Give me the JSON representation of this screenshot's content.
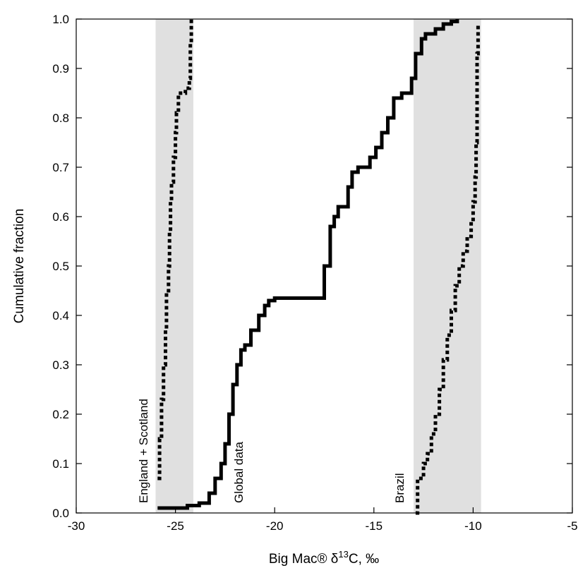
{
  "chart_data": {
    "type": "line",
    "xlabel": "Big Mac® δ13C, ‰",
    "xlabel_main": "Big Mac® δ",
    "xlabel_sup": "13",
    "xlabel_tail": "C, ‰",
    "ylabel": "Cumulative fraction",
    "xlim": [
      -30,
      -5
    ],
    "ylim": [
      0,
      1
    ],
    "xticks": [
      -30,
      -25,
      -20,
      -15,
      -10,
      -5
    ],
    "yticks": [
      0.0,
      0.1,
      0.2,
      0.3,
      0.4,
      0.5,
      0.6,
      0.7,
      0.8,
      0.9,
      1.0
    ],
    "xtick_labels": [
      "-30",
      "-25",
      "-20",
      "-15",
      "-10",
      "-5"
    ],
    "ytick_labels": [
      "0.0",
      "0.1",
      "0.2",
      "0.3",
      "0.4",
      "0.5",
      "0.6",
      "0.7",
      "0.8",
      "0.9",
      "1.0"
    ],
    "shaded_regions": [
      {
        "x0": -26.0,
        "x1": -24.1,
        "color": "#e0e0e0"
      },
      {
        "x0": -13.0,
        "x1": -9.6,
        "color": "#e0e0e0"
      }
    ],
    "annotations": [
      {
        "text": "England + Scotland",
        "x": -26.4,
        "y": 0.02
      },
      {
        "text": "Global data",
        "x": -21.6,
        "y": 0.02
      },
      {
        "text": "Brazil",
        "x": -13.5,
        "y": 0.02
      }
    ],
    "series": [
      {
        "style": "dotted",
        "color": "#000000",
        "x": [
          -25.9,
          -25.8,
          -25.7,
          -25.6,
          -25.5,
          -25.45,
          -25.35,
          -25.3,
          -25.25,
          -25.2,
          -25.1,
          -25.0,
          -24.95,
          -24.85,
          -24.7,
          -24.5,
          -24.3,
          -24.25,
          -24.2
        ],
        "y": [
          0.07,
          0.15,
          0.23,
          0.3,
          0.37,
          0.45,
          0.5,
          0.57,
          0.63,
          0.67,
          0.72,
          0.77,
          0.81,
          0.85,
          0.85,
          0.86,
          0.88,
          0.95,
          1.0
        ]
      },
      {
        "style": "solid",
        "color": "#000000",
        "x": [
          -25.9,
          -25.0,
          -24.4,
          -23.8,
          -23.3,
          -23.0,
          -22.7,
          -22.5,
          -22.3,
          -22.1,
          -21.9,
          -21.7,
          -21.5,
          -21.2,
          -20.8,
          -20.5,
          -20.3,
          -20.0,
          -19.0,
          -18.0,
          -17.5,
          -17.2,
          -17.0,
          -16.8,
          -16.3,
          -16.1,
          -15.8,
          -15.2,
          -14.9,
          -14.6,
          -14.3,
          -14.0,
          -13.6,
          -13.1,
          -12.9,
          -12.6,
          -12.4,
          -11.9,
          -11.5,
          -11.1,
          -10.8
        ],
        "y": [
          0.01,
          0.01,
          0.015,
          0.02,
          0.04,
          0.07,
          0.1,
          0.14,
          0.2,
          0.26,
          0.3,
          0.33,
          0.34,
          0.37,
          0.4,
          0.42,
          0.43,
          0.435,
          0.435,
          0.435,
          0.5,
          0.58,
          0.6,
          0.62,
          0.66,
          0.69,
          0.7,
          0.72,
          0.74,
          0.77,
          0.8,
          0.84,
          0.85,
          0.88,
          0.93,
          0.96,
          0.97,
          0.98,
          0.99,
          0.995,
          1.0
        ]
      },
      {
        "style": "dotted",
        "color": "#000000",
        "x": [
          -12.9,
          -12.8,
          -12.5,
          -12.3,
          -12.1,
          -11.9,
          -11.7,
          -11.5,
          -11.3,
          -11.1,
          -10.9,
          -10.7,
          -10.5,
          -10.3,
          -10.1,
          -10.0,
          -9.9,
          -9.85,
          -9.8,
          -9.8,
          -9.75
        ],
        "y": [
          0.0,
          0.07,
          0.1,
          0.12,
          0.16,
          0.2,
          0.25,
          0.31,
          0.36,
          0.41,
          0.46,
          0.5,
          0.53,
          0.56,
          0.59,
          0.63,
          0.68,
          0.75,
          0.85,
          0.93,
          0.99
        ]
      }
    ]
  }
}
